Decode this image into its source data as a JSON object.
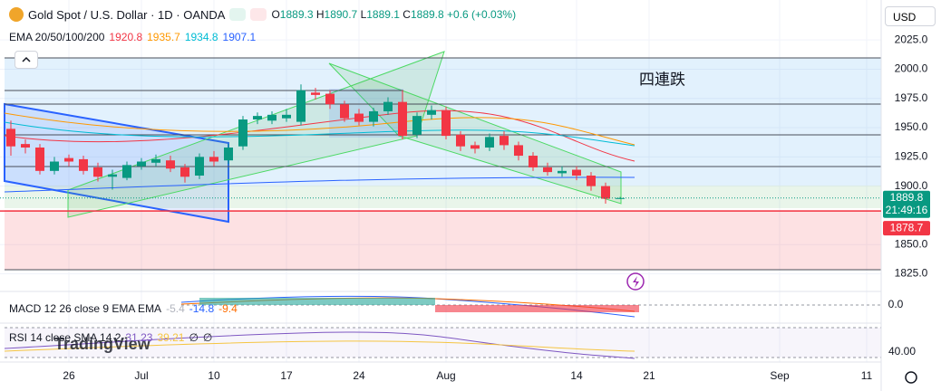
{
  "header": {
    "symbol": "Gold Spot / U.S. Dollar · 1D · OANDA",
    "ohlc_labels": [
      "O",
      "H",
      "L",
      "C"
    ],
    "change": "+0.6 (+0.03%)",
    "currency": "USD"
  },
  "indicators": {
    "ema": {
      "name": "EMA 20/50/100/200",
      "values": [
        1920.8,
        1935.7,
        1934.8,
        1907.1
      ],
      "colors": [
        "#f23645",
        "#ff9800",
        "#00bcd4",
        "#2962ff"
      ]
    },
    "macd": {
      "name": "MACD 12 26 close 9 EMA EMA",
      "values": [
        -5.4,
        -14.8,
        -9.4
      ],
      "colors": [
        "#b2b5be",
        "#2962ff",
        "#ff6d00"
      ],
      "axis_label": "0.0"
    },
    "rsi": {
      "name": "RSI 14 close SMA 14 2",
      "values": [
        31.23,
        39.21
      ],
      "extras": [
        "∅",
        "∅"
      ],
      "colors": [
        "#7e57c2",
        "#f5c542",
        "#131722"
      ],
      "axis_label": "40.00"
    }
  },
  "annotation": "四連跌",
  "price_tags": {
    "countdown": "21:49:16",
    "level": 1878.7,
    "level_color": "#f23645"
  },
  "watermark": "TradingView",
  "chart_data": {
    "type": "candlestick",
    "up_color": "#089981",
    "down_color": "#f23645",
    "grid": true,
    "categories": [
      null,
      null,
      null,
      null,
      "26",
      null,
      null,
      null,
      null,
      "Jul",
      null,
      null,
      null,
      null,
      "10",
      null,
      null,
      null,
      null,
      "17",
      null,
      null,
      null,
      null,
      "24",
      null,
      null,
      null,
      null,
      null,
      "Aug",
      null,
      null,
      null,
      null,
      null,
      null,
      null,
      null,
      "14",
      null,
      null,
      null,
      null,
      "21",
      null,
      null,
      null,
      null,
      null,
      null,
      null,
      null,
      "Sep",
      null,
      null,
      null,
      null,
      null,
      "11"
    ],
    "open": [
      1949,
      1936,
      1933,
      1913,
      1924,
      1923,
      1916,
      1908,
      1907,
      1917,
      1920,
      1922,
      1916,
      1909,
      1925,
      1922,
      1934,
      1957,
      1956,
      1958,
      1955,
      1980,
      1979,
      1970,
      1962,
      1955,
      1964,
      1972,
      1944,
      1961,
      1965,
      1944,
      1935,
      1933,
      1943,
      1935,
      1926,
      1916,
      1911,
      1914,
      1909,
      1900,
      1889.3,
      null,
      null,
      null,
      null,
      null,
      null,
      null,
      null,
      null,
      null,
      null,
      null,
      null,
      null,
      null,
      null,
      null
    ],
    "high": [
      1956,
      1940,
      1936,
      1925,
      1927,
      1926,
      1920,
      1914,
      1921,
      1924,
      1927,
      1926,
      1919,
      1928,
      1930,
      1936,
      1960,
      1963,
      1964,
      1966,
      1987,
      1984,
      1982,
      1973,
      1966,
      1967,
      1976,
      1982,
      1963,
      1969,
      1968,
      1947,
      1938,
      1945,
      1947,
      1938,
      1929,
      1920,
      1917,
      1917,
      1912,
      1903,
      1890.7,
      null,
      null,
      null,
      null,
      null,
      null,
      null,
      null,
      null,
      null,
      null,
      null,
      null,
      null,
      null,
      null,
      null
    ],
    "low": [
      1926,
      1928,
      1910,
      1910,
      1917,
      1910,
      1904,
      1897,
      1905,
      1914,
      1917,
      1912,
      1903,
      1906,
      1917,
      1919,
      1931,
      1953,
      1953,
      1955,
      1952,
      1974,
      1966,
      1955,
      1952,
      1951,
      1961,
      1940,
      1941,
      1957,
      1940,
      1930,
      1928,
      1930,
      1931,
      1922,
      1913,
      1909,
      1908,
      1905,
      1896,
      1885,
      1889.1,
      null,
      null,
      null,
      null,
      null,
      null,
      null,
      null,
      null,
      null,
      null,
      null,
      null,
      null,
      null,
      null,
      null
    ],
    "close": [
      1934,
      1933,
      1913,
      1921,
      1921,
      1913,
      1908,
      1910,
      1918,
      1921,
      1923,
      1915,
      1908,
      1925,
      1921,
      1933,
      1957,
      1960,
      1961,
      1961,
      1982,
      1978,
      1970,
      1958,
      1955,
      1964,
      1972,
      1943,
      1960,
      1965,
      1943,
      1934,
      1932,
      1942,
      1935,
      1926,
      1916,
      1912,
      1913,
      1909,
      1900,
      1889.2,
      1889.8,
      null,
      null,
      null,
      null,
      null,
      null,
      null,
      null,
      null,
      null,
      null,
      null,
      null,
      null,
      null,
      null,
      null
    ],
    "ylim": [
      1813,
      2053
    ],
    "yticks": [
      {
        "value": 1825,
        "label": "1825.0"
      },
      {
        "value": 1850,
        "label": "1850.0"
      },
      {
        "value": 1900,
        "label": "1900.0"
      },
      {
        "value": 1925,
        "label": "1925.0"
      },
      {
        "value": 1950,
        "label": "1950.0"
      },
      {
        "value": 1975,
        "label": "1975.0"
      },
      {
        "value": 2000,
        "label": "2000.0"
      },
      {
        "value": 2025,
        "label": "2025.0"
      }
    ]
  }
}
